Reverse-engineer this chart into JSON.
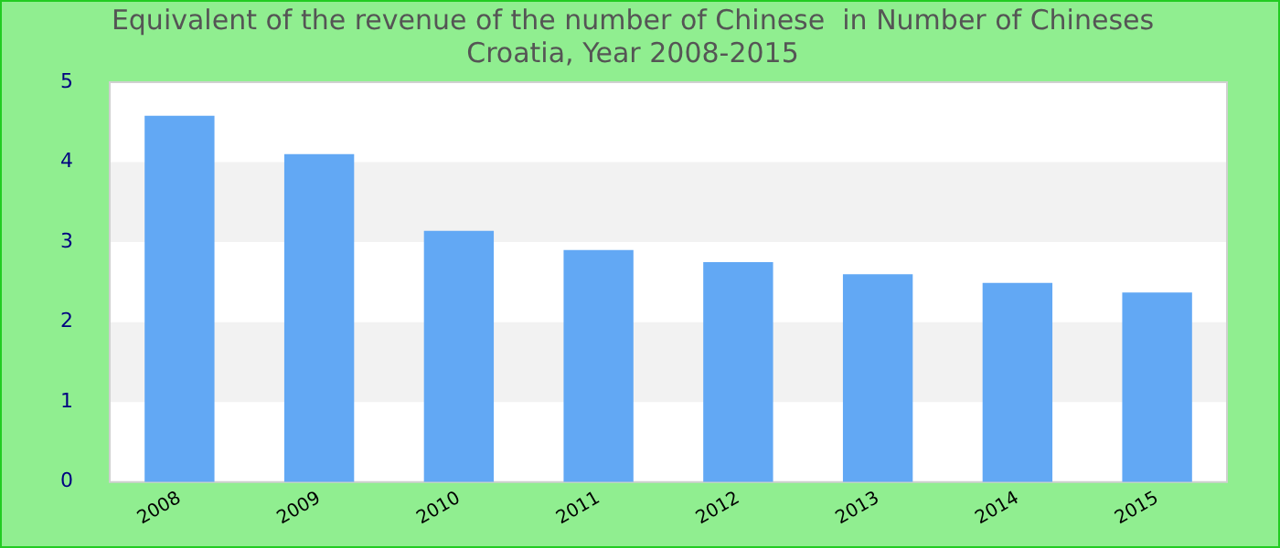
{
  "chart_data": {
    "type": "bar",
    "title": "Equivalent of the revenue of the number of Chinese  in Number of Chineses",
    "subtitle": "Croatia, Year 2008-2015",
    "categories": [
      "2008",
      "2009",
      "2010",
      "2011",
      "2012",
      "2013",
      "2014",
      "2015"
    ],
    "values": [
      4.58,
      4.1,
      3.14,
      2.9,
      2.75,
      2.6,
      2.49,
      2.37
    ],
    "color": "#62a8f4",
    "ylim": [
      0,
      5
    ],
    "yticks": [
      0,
      1,
      2,
      3,
      4,
      5
    ],
    "legend": false,
    "bands": [
      {
        "axis": "y",
        "from": 1,
        "to": 2,
        "color": "#f2f2f2"
      },
      {
        "axis": "y",
        "from": 3,
        "to": 4,
        "color": "#f2f2f2"
      }
    ]
  }
}
